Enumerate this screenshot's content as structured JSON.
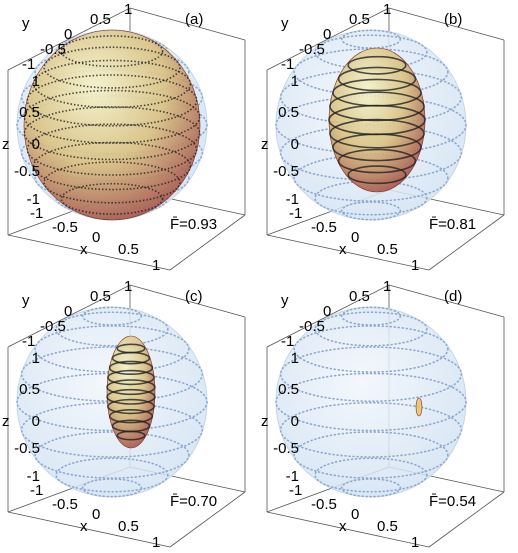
{
  "panels": [
    {
      "label": "(a)",
      "fidelity": "F̄=0.93"
    },
    {
      "label": "(b)",
      "fidelity": "F̄=0.81"
    },
    {
      "label": "(c)",
      "fidelity": "F̄=0.70"
    },
    {
      "label": "(d)",
      "fidelity": "F̄=0.54"
    }
  ],
  "axes": {
    "x_label": "x",
    "y_label": "y",
    "z_label": "z",
    "x_ticks": [
      -1,
      -0.5,
      0,
      0.5,
      1
    ],
    "y_ticks": [
      -1,
      -0.5,
      0,
      0.5,
      1
    ],
    "z_ticks": [
      1,
      0.5,
      0,
      -0.5,
      -1
    ]
  }
}
